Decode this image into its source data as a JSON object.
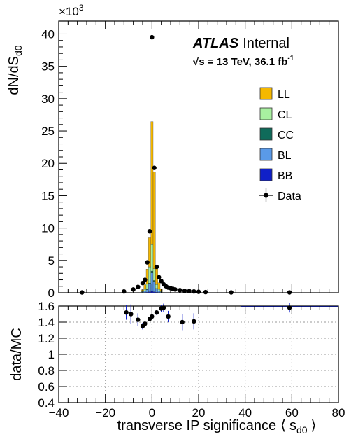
{
  "chart_data": [
    {
      "type": "bar",
      "panel": "main",
      "ylabel": "dN/dS",
      "ylabel_sub": "d0",
      "y_multiplier": "×10",
      "y_multiplier_exp": "3",
      "xlim": [
        -40,
        80
      ],
      "ylim": [
        0,
        42000
      ],
      "yticks": [
        0,
        5000,
        10000,
        15000,
        20000,
        25000,
        30000,
        35000,
        40000
      ],
      "ytick_labels": [
        "0",
        "5",
        "10",
        "15",
        "20",
        "25",
        "30",
        "35",
        "40"
      ],
      "experiment": "ATLAS",
      "status": "Internal",
      "energy_label": "√s = 13 TeV, 36.1 fb",
      "energy_label_exp": "-1",
      "legend_position": "right",
      "legend": [
        {
          "name": "LL",
          "color": "#f5b800",
          "kind": "box"
        },
        {
          "name": "CL",
          "color": "#a8f0a0",
          "kind": "box"
        },
        {
          "name": "CC",
          "color": "#0f6b5a",
          "kind": "box"
        },
        {
          "name": "BL",
          "color": "#5a9ae8",
          "kind": "box"
        },
        {
          "name": "BB",
          "color": "#1020c8",
          "kind": "box"
        },
        {
          "name": "Data",
          "color": "#000000",
          "kind": "marker"
        }
      ],
      "bin_width": 1,
      "stack_bins_x": [
        -4,
        -3,
        -2,
        -1,
        0,
        1,
        2,
        3,
        4
      ],
      "series": [
        {
          "name": "BB",
          "values": [
            0,
            50,
            80,
            150,
            250,
            150,
            80,
            50,
            0
          ]
        },
        {
          "name": "BL",
          "values": [
            80,
            200,
            400,
            1200,
            2800,
            1600,
            500,
            200,
            80
          ]
        },
        {
          "name": "CC",
          "values": [
            20,
            40,
            80,
            150,
            300,
            150,
            80,
            40,
            20
          ]
        },
        {
          "name": "CL",
          "values": [
            100,
            250,
            800,
            2500,
            4100,
            1800,
            600,
            250,
            100
          ]
        },
        {
          "name": "LL",
          "values": [
            250,
            700,
            2300,
            4500,
            19000,
            15000,
            3000,
            1000,
            400
          ]
        }
      ],
      "data_points": {
        "x": [
          -30,
          -12,
          -8,
          -6,
          -4,
          -3,
          -2,
          -1,
          0,
          1,
          2,
          3,
          4,
          5,
          6,
          7,
          8,
          9,
          10,
          12,
          14,
          16,
          18,
          20,
          23,
          34,
          59
        ],
        "y": [
          50,
          200,
          500,
          900,
          1500,
          2000,
          4700,
          9500,
          39500,
          19300,
          4000,
          2400,
          1800,
          1300,
          1000,
          800,
          700,
          600,
          500,
          400,
          300,
          250,
          200,
          150,
          100,
          50,
          50
        ]
      }
    },
    {
      "type": "scatter",
      "panel": "ratio",
      "ylabel": "data/MC",
      "xlabel": "transverse IP significance",
      "xlabel_sub": "d0",
      "xlim": [
        -40,
        80
      ],
      "ylim": [
        0.4,
        1.6
      ],
      "xticks": [
        -40,
        -20,
        0,
        20,
        40,
        60,
        80
      ],
      "yticks": [
        0.4,
        0.6,
        0.8,
        1.0,
        1.2,
        1.4,
        1.6
      ],
      "ytick_labels": [
        "0.4",
        "0.6",
        "0.8",
        "1",
        "1.2",
        "1.4",
        "1.6"
      ],
      "grid": true,
      "points": [
        {
          "x": -11,
          "y": 1.52,
          "err": 0.09
        },
        {
          "x": -9,
          "y": 1.5,
          "err": 0.12
        },
        {
          "x": -6,
          "y": 1.43,
          "err": 0.08
        },
        {
          "x": -4,
          "y": 1.35,
          "err": 0.04
        },
        {
          "x": -3,
          "y": 1.38,
          "err": 0.03
        },
        {
          "x": -1,
          "y": 1.44,
          "err": 0.02
        },
        {
          "x": 0,
          "y": 1.47,
          "err": 0.02
        },
        {
          "x": 2,
          "y": 1.52,
          "err": 0.03
        },
        {
          "x": 4,
          "y": 1.57,
          "err": 0.04
        },
        {
          "x": 5,
          "y": 1.58,
          "err": 0.05
        },
        {
          "x": 7,
          "y": 1.47,
          "err": 0.07
        },
        {
          "x": 13,
          "y": 1.4,
          "err": 0.1
        },
        {
          "x": 18,
          "y": 1.41,
          "err": 0.1
        },
        {
          "x": 59,
          "y": 1.58,
          "err": 0.06
        }
      ],
      "flat_segment": {
        "x": [
          38,
          80
        ],
        "y": 1.59,
        "color": "#1020c8"
      }
    }
  ]
}
